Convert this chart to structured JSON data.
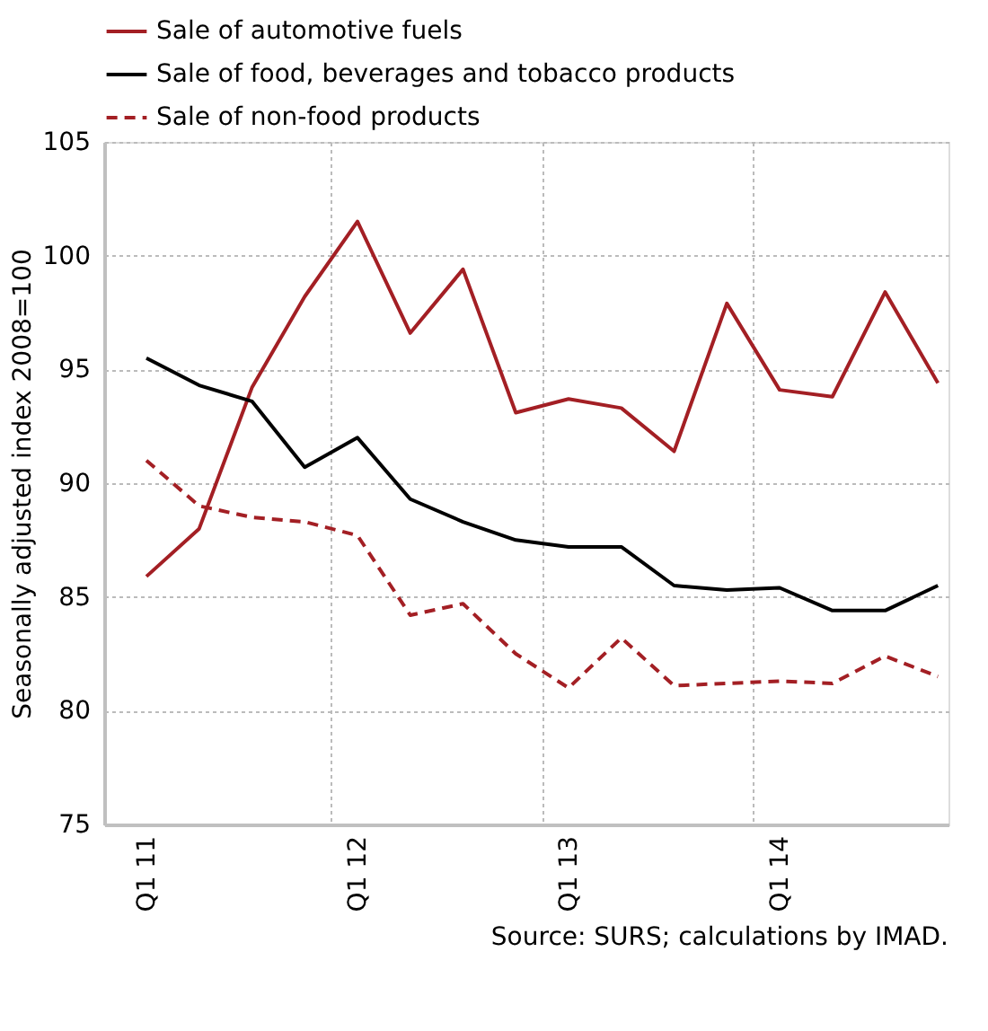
{
  "chart_data": {
    "type": "line",
    "ylabel": "Seasonally adjusted index 2008=100",
    "annotations": [
      "Source: SURS; calculations by IMAD."
    ],
    "categories": [
      "Q1 11",
      null,
      null,
      null,
      "Q1 12",
      null,
      null,
      null,
      "Q1 13",
      null,
      null,
      null,
      "Q1 14",
      null,
      null,
      null
    ],
    "series": [
      {
        "name": "Sale of automotive fuels",
        "color": "#a31f24",
        "line_style": "solid",
        "values": [
          85.9,
          88.0,
          94.2,
          98.2,
          101.5,
          96.6,
          99.4,
          93.1,
          93.7,
          93.3,
          91.4,
          97.9,
          94.1,
          93.8,
          98.4,
          94.4
        ]
      },
      {
        "name": "Sale of food, beverages and tobacco products",
        "color": "#000000",
        "line_style": "solid",
        "values": [
          95.5,
          94.3,
          93.6,
          90.7,
          92.0,
          89.3,
          88.3,
          87.5,
          87.2,
          87.2,
          85.5,
          85.3,
          85.4,
          84.4,
          84.4,
          85.5
        ]
      },
      {
        "name": "Sale of non-food products",
        "color": "#a31f24",
        "line_style": "dashed",
        "values": [
          91.0,
          89.0,
          88.5,
          88.3,
          87.7,
          84.2,
          84.7,
          82.5,
          81.0,
          83.2,
          81.1,
          81.2,
          81.3,
          81.2,
          82.4,
          81.5
        ]
      }
    ],
    "ylim": [
      75,
      105
    ],
    "yticks": [
      75,
      80,
      85,
      90,
      95,
      100,
      105
    ],
    "grid": true,
    "legend": "top left",
    "marker": "none"
  }
}
